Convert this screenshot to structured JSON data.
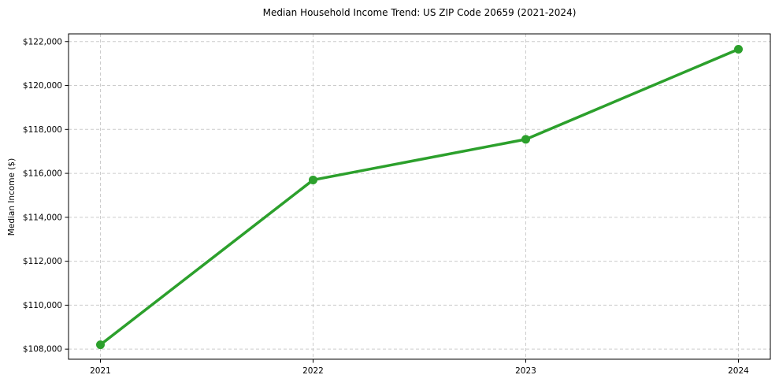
{
  "chart_data": {
    "type": "line",
    "title": "Median Household Income Trend: US ZIP Code 20659 (2021-2024)",
    "xlabel": "",
    "ylabel": "Median Income ($)",
    "x": [
      2021,
      2022,
      2023,
      2024
    ],
    "x_tick_labels": [
      "2021",
      "2022",
      "2023",
      "2024"
    ],
    "series": [
      {
        "name": "Median Household Income",
        "values": [
          108200,
          115700,
          117550,
          121650
        ]
      }
    ],
    "y_ticks": [
      108000,
      110000,
      112000,
      114000,
      116000,
      118000,
      120000,
      122000
    ],
    "y_tick_labels": [
      "$108,000",
      "$110,000",
      "$112,000",
      "$114,000",
      "$116,000",
      "$118,000",
      "$120,000",
      "$122,000"
    ],
    "xlim": [
      2020.85,
      2024.15
    ],
    "ylim": [
      107540,
      122350
    ],
    "grid": true,
    "legend": "none",
    "colors": {
      "line": "#2ca02c",
      "marker": "#2ca02c",
      "grid": "#cccccc",
      "spine": "#000000",
      "background": "#ffffff",
      "text": "#000000"
    }
  }
}
